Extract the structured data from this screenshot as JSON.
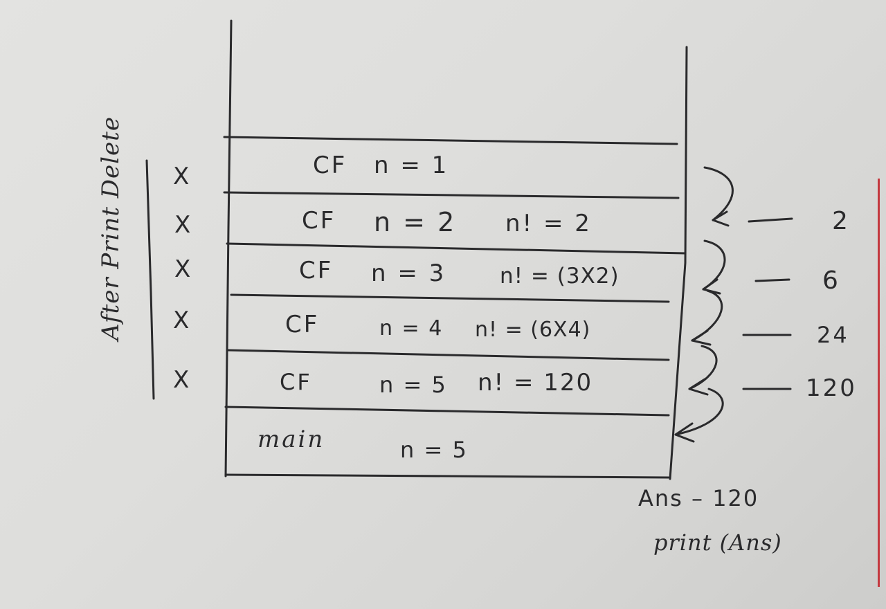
{
  "side_label": "After Print Delete",
  "crosses": [
    "X",
    "X",
    "X",
    "X",
    "X"
  ],
  "frames": [
    {
      "label": "CF",
      "n": "n = 1",
      "fact": ""
    },
    {
      "label": "CF",
      "n": "n = 2",
      "fact": "n! = 2"
    },
    {
      "label": "CF",
      "n": "n = 3",
      "fact": "n! = (3X2)"
    },
    {
      "label": "CF",
      "n": "n = 4",
      "fact": "n! = (6X4)"
    },
    {
      "label": "CF",
      "n": "n = 5",
      "fact": "n! = 120"
    },
    {
      "label": "main",
      "n": "n = 5",
      "fact": ""
    }
  ],
  "returns": [
    "2",
    "6",
    "24",
    "120"
  ],
  "footer": {
    "line1": "Ans – 120",
    "line2": "print (Ans)"
  },
  "ink_color": "#2a2a2c",
  "edge_color": "#c4393f"
}
